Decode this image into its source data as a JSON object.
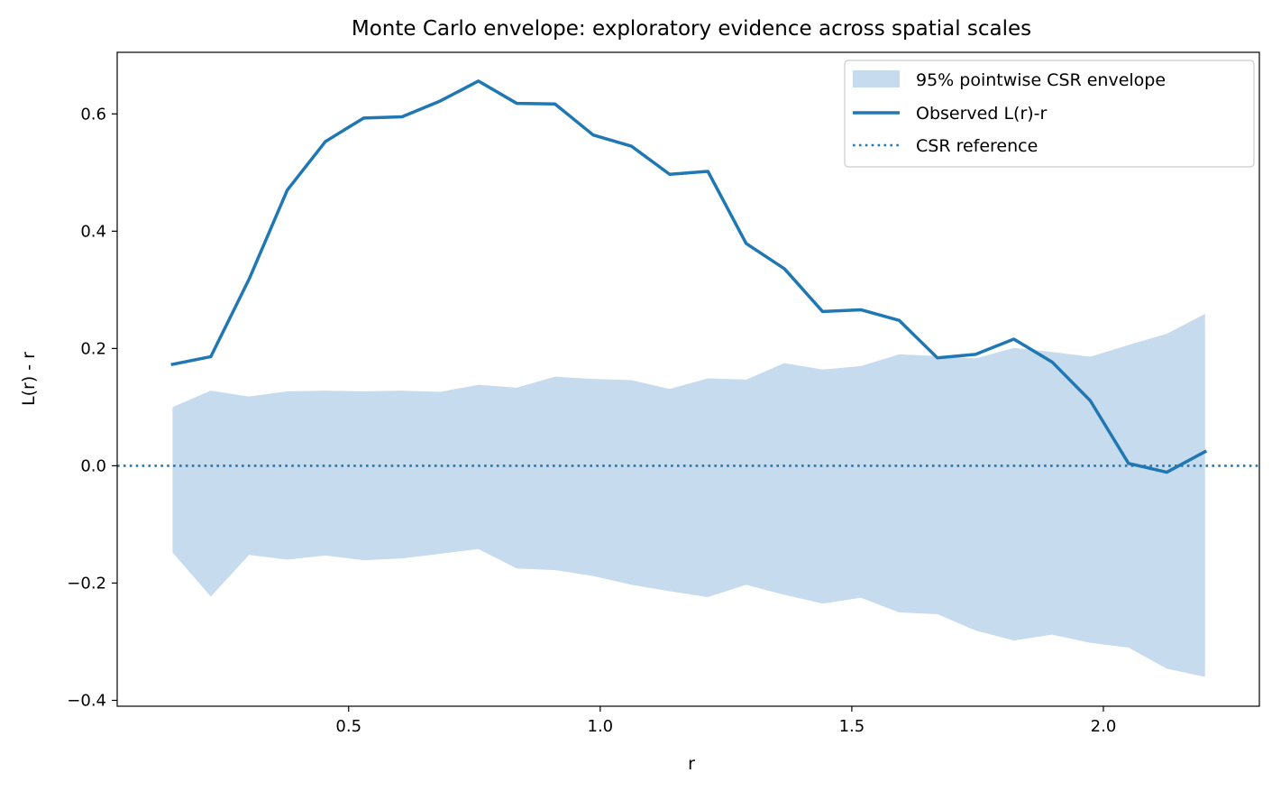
{
  "chart_data": {
    "type": "line",
    "title": "Monte Carlo envelope: exploratory evidence across spatial scales",
    "xlabel": "r",
    "ylabel": "L(r) - r",
    "xlim": [
      0.04,
      2.31
    ],
    "ylim": [
      -0.41,
      0.705
    ],
    "xticks": [
      0.5,
      1.0,
      1.5,
      2.0
    ],
    "xtick_labels": [
      "0.5",
      "1.0",
      "1.5",
      "2.0"
    ],
    "yticks": [
      -0.4,
      -0.2,
      0.0,
      0.2,
      0.4,
      0.6
    ],
    "ytick_labels": [
      "−0.4",
      "−0.2",
      "0.0",
      "0.2",
      "0.4",
      "0.6"
    ],
    "grid": false,
    "legend_position": "top-right",
    "colors": {
      "line": "#1f77b4",
      "envelope": "#c6dbed",
      "axes": "#000000"
    },
    "x": [
      0.15,
      0.226,
      0.302,
      0.378,
      0.454,
      0.53,
      0.606,
      0.682,
      0.758,
      0.834,
      0.91,
      0.986,
      1.062,
      1.138,
      1.214,
      1.29,
      1.366,
      1.442,
      1.518,
      1.594,
      1.67,
      1.746,
      1.822,
      1.898,
      1.974,
      2.05,
      2.126,
      2.202
    ],
    "series": [
      {
        "name": "95% pointwise CSR envelope",
        "kind": "band",
        "upper": [
          0.1,
          0.128,
          0.118,
          0.127,
          0.128,
          0.127,
          0.128,
          0.126,
          0.138,
          0.133,
          0.152,
          0.148,
          0.146,
          0.131,
          0.149,
          0.147,
          0.175,
          0.164,
          0.17,
          0.19,
          0.187,
          0.183,
          0.201,
          0.194,
          0.186,
          0.206,
          0.225,
          0.259
        ],
        "lower": [
          -0.148,
          -0.223,
          -0.152,
          -0.16,
          -0.153,
          -0.161,
          -0.158,
          -0.15,
          -0.142,
          -0.175,
          -0.178,
          -0.188,
          -0.203,
          -0.214,
          -0.224,
          -0.203,
          -0.22,
          -0.235,
          -0.225,
          -0.25,
          -0.253,
          -0.281,
          -0.298,
          -0.288,
          -0.302,
          -0.31,
          -0.346,
          -0.36
        ]
      },
      {
        "name": "Observed L(r)-r",
        "kind": "line",
        "values": [
          0.173,
          0.186,
          0.318,
          0.47,
          0.553,
          0.593,
          0.595,
          0.622,
          0.656,
          0.618,
          0.617,
          0.564,
          0.545,
          0.497,
          0.502,
          0.379,
          0.336,
          0.263,
          0.266,
          0.248,
          0.184,
          0.19,
          0.216,
          0.177,
          0.111,
          0.004,
          -0.011,
          0.024
        ]
      },
      {
        "name": "CSR reference",
        "kind": "hline",
        "y": 0.0
      }
    ]
  }
}
